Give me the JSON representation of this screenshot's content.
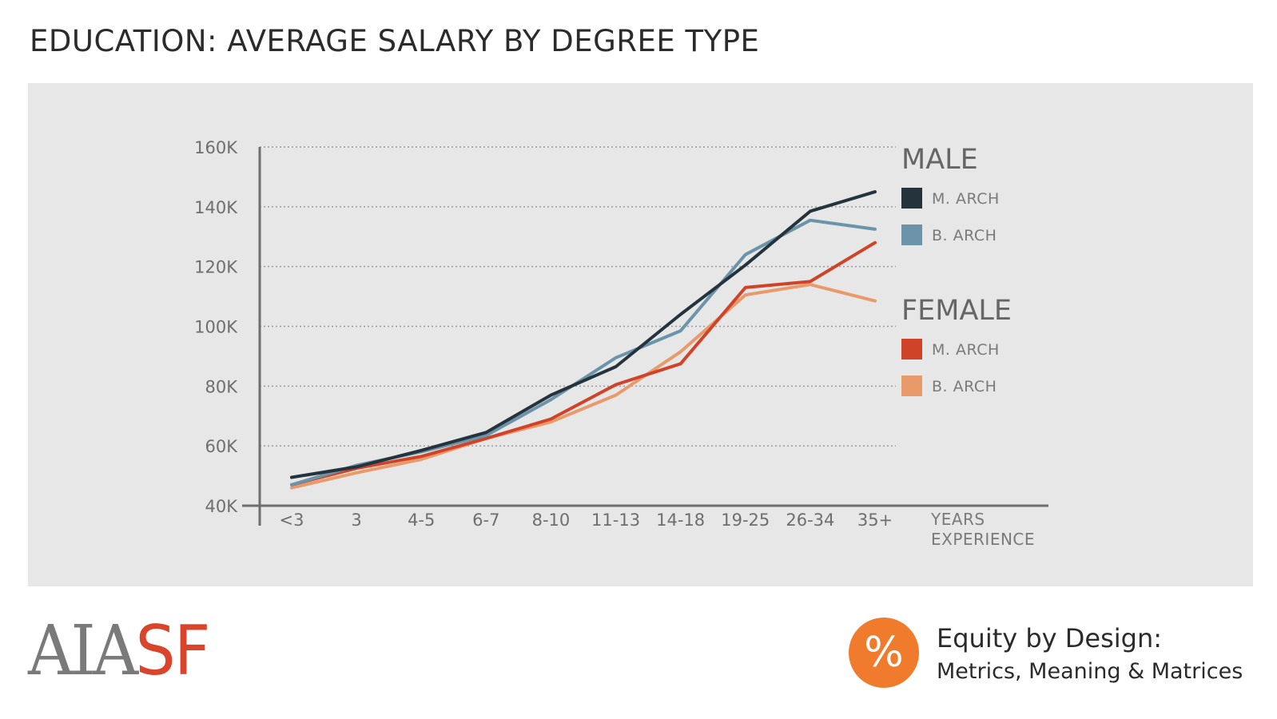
{
  "page": {
    "title": "EDUCATION: AVERAGE SALARY BY DEGREE TYPE"
  },
  "colors": {
    "panel_background": "#e7e7e7",
    "male_m_arch": "#24333c",
    "male_b_arch": "#6b93aa",
    "female_m_arch": "#cf4428",
    "female_b_arch": "#e99a6b",
    "brand_red": "#d9442b",
    "brand_orange": "#f07b2c"
  },
  "chart_data": {
    "type": "line",
    "title": "EDUCATION: AVERAGE SALARY BY DEGREE TYPE",
    "xlabel": "YEARS EXPERIENCE",
    "ylabel": "",
    "categories": [
      "<3",
      "3",
      "4-5",
      "6-7",
      "8-10",
      "11-13",
      "14-18",
      "19-25",
      "26-34",
      "35+"
    ],
    "y_ticks": [
      40000,
      60000,
      80000,
      100000,
      120000,
      140000,
      160000
    ],
    "y_tick_labels": [
      "40K",
      "60K",
      "80K",
      "100K",
      "120K",
      "140K",
      "160K"
    ],
    "ylim": [
      40000,
      160000
    ],
    "grid": true,
    "legend_placement": "right",
    "groups": [
      {
        "name": "MALE",
        "series": [
          "M. ARCH",
          "B. ARCH"
        ]
      },
      {
        "name": "FEMALE",
        "series": [
          "M. ARCH",
          "B. ARCH"
        ]
      }
    ],
    "series": [
      {
        "name": "M. ARCH",
        "group": "MALE",
        "color": "#24333c",
        "values": [
          49500,
          53000,
          58500,
          64500,
          77000,
          86500,
          104000,
          120500,
          138500,
          145000
        ]
      },
      {
        "name": "B. ARCH",
        "group": "MALE",
        "color": "#6b93aa",
        "values": [
          47000,
          53500,
          58000,
          63500,
          75500,
          89500,
          98500,
          124000,
          135500,
          132500
        ]
      },
      {
        "name": "M. ARCH",
        "group": "FEMALE",
        "color": "#cf4428",
        "values": [
          47000,
          52500,
          56500,
          62500,
          69000,
          80500,
          87500,
          113000,
          115000,
          128000
        ]
      },
      {
        "name": "B. ARCH",
        "group": "FEMALE",
        "color": "#e99a6b",
        "values": [
          46000,
          51000,
          55500,
          62500,
          68000,
          77000,
          91500,
          110500,
          114000,
          108500
        ]
      }
    ]
  },
  "footer": {
    "logo_aia": "AIA",
    "logo_sf": "SF",
    "badge_symbol": "%",
    "equity_title": "Equity by Design:",
    "equity_subtitle": "Metrics, Meaning & Matrices"
  }
}
